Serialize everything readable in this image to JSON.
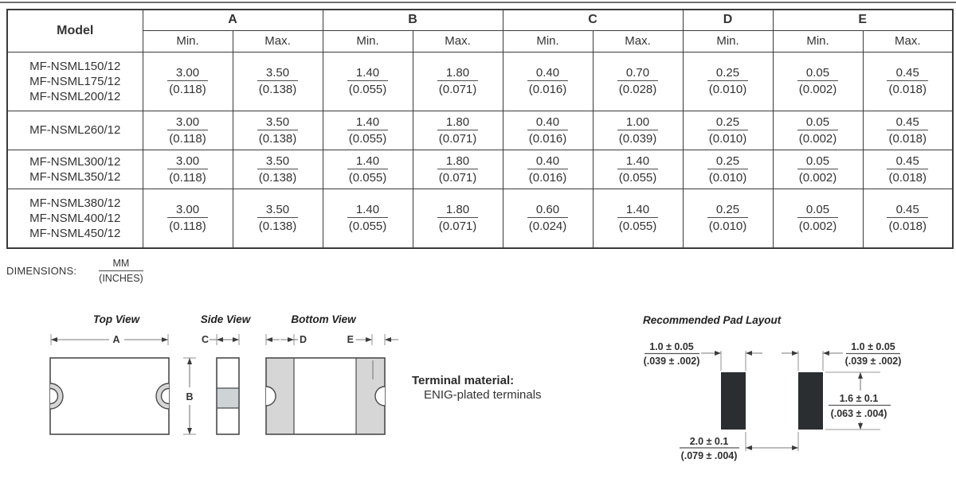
{
  "colors": {
    "table_border": "#3a3a3a",
    "terminal_gray": "#d6d6d6",
    "pad_dark": "#2b2e30",
    "text": "#333333"
  },
  "table": {
    "model_header": "Model",
    "groups": [
      {
        "label": "A",
        "cols": [
          "Min.",
          "Max."
        ]
      },
      {
        "label": "B",
        "cols": [
          "Min.",
          "Max."
        ]
      },
      {
        "label": "C",
        "cols": [
          "Min.",
          "Max."
        ]
      },
      {
        "label": "D",
        "cols": [
          "Min."
        ]
      },
      {
        "label": "E",
        "cols": [
          "Min.",
          "Max."
        ]
      }
    ],
    "rows": [
      {
        "models": [
          "MF-NSML150/12",
          "MF-NSML175/12",
          "MF-NSML200/12"
        ],
        "values": [
          {
            "mm": "3.00",
            "in": "(0.118)"
          },
          {
            "mm": "3.50",
            "in": "(0.138)"
          },
          {
            "mm": "1.40",
            "in": "(0.055)"
          },
          {
            "mm": "1.80",
            "in": "(0.071)"
          },
          {
            "mm": "0.40",
            "in": "(0.016)"
          },
          {
            "mm": "0.70",
            "in": "(0.028)"
          },
          {
            "mm": "0.25",
            "in": "(0.010)"
          },
          {
            "mm": "0.05",
            "in": "(0.002)"
          },
          {
            "mm": "0.45",
            "in": "(0.018)"
          }
        ]
      },
      {
        "models": [
          "MF-NSML260/12"
        ],
        "values": [
          {
            "mm": "3.00",
            "in": "(0.118)"
          },
          {
            "mm": "3.50",
            "in": "(0.138)"
          },
          {
            "mm": "1.40",
            "in": "(0.055)"
          },
          {
            "mm": "1.80",
            "in": "(0.071)"
          },
          {
            "mm": "0.40",
            "in": "(0.016)"
          },
          {
            "mm": "1.00",
            "in": "(0.039)"
          },
          {
            "mm": "0.25",
            "in": "(0.010)"
          },
          {
            "mm": "0.05",
            "in": "(0.002)"
          },
          {
            "mm": "0.45",
            "in": "(0.018)"
          }
        ]
      },
      {
        "models": [
          "MF-NSML300/12",
          "MF-NSML350/12"
        ],
        "values": [
          {
            "mm": "3.00",
            "in": "(0.118)"
          },
          {
            "mm": "3.50",
            "in": "(0.138)"
          },
          {
            "mm": "1.40",
            "in": "(0.055)"
          },
          {
            "mm": "1.80",
            "in": "(0.071)"
          },
          {
            "mm": "0.40",
            "in": "(0.016)"
          },
          {
            "mm": "1.40",
            "in": "(0.055)"
          },
          {
            "mm": "0.25",
            "in": "(0.010)"
          },
          {
            "mm": "0.05",
            "in": "(0.002)"
          },
          {
            "mm": "0.45",
            "in": "(0.018)"
          }
        ]
      },
      {
        "models": [
          "MF-NSML380/12",
          "MF-NSML400/12",
          "MF-NSML450/12"
        ],
        "values": [
          {
            "mm": "3.00",
            "in": "(0.118)"
          },
          {
            "mm": "3.50",
            "in": "(0.138)"
          },
          {
            "mm": "1.40",
            "in": "(0.055)"
          },
          {
            "mm": "1.80",
            "in": "(0.071)"
          },
          {
            "mm": "0.60",
            "in": "(0.024)"
          },
          {
            "mm": "1.40",
            "in": "(0.055)"
          },
          {
            "mm": "0.25",
            "in": "(0.010)"
          },
          {
            "mm": "0.05",
            "in": "(0.002)"
          },
          {
            "mm": "0.45",
            "in": "(0.018)"
          }
        ]
      }
    ]
  },
  "dimensions_note": {
    "label": "DIMENSIONS:",
    "numerator": "MM",
    "denominator": "(INCHES)"
  },
  "diagrams": {
    "top_view": {
      "title": "Top View",
      "dim_a": "A",
      "dim_b": "B"
    },
    "side_view": {
      "title": "Side View",
      "dim_c": "C"
    },
    "bottom_view": {
      "title": "Bottom View",
      "dim_d": "D",
      "dim_e": "E"
    },
    "terminal": {
      "label": "Terminal material:",
      "value": "ENIG-plated terminals"
    },
    "pad_layout": {
      "title": "Recommended Pad Layout",
      "pad_width_mm": "1.0 ± 0.05",
      "pad_width_in": "(.039 ± .002)",
      "pad_height_mm": "1.6 ± 0.1",
      "pad_height_in": "(.063 ± .004)",
      "gap_mm": "2.0 ± 0.1",
      "gap_in": "(.079 ± .004)"
    }
  }
}
